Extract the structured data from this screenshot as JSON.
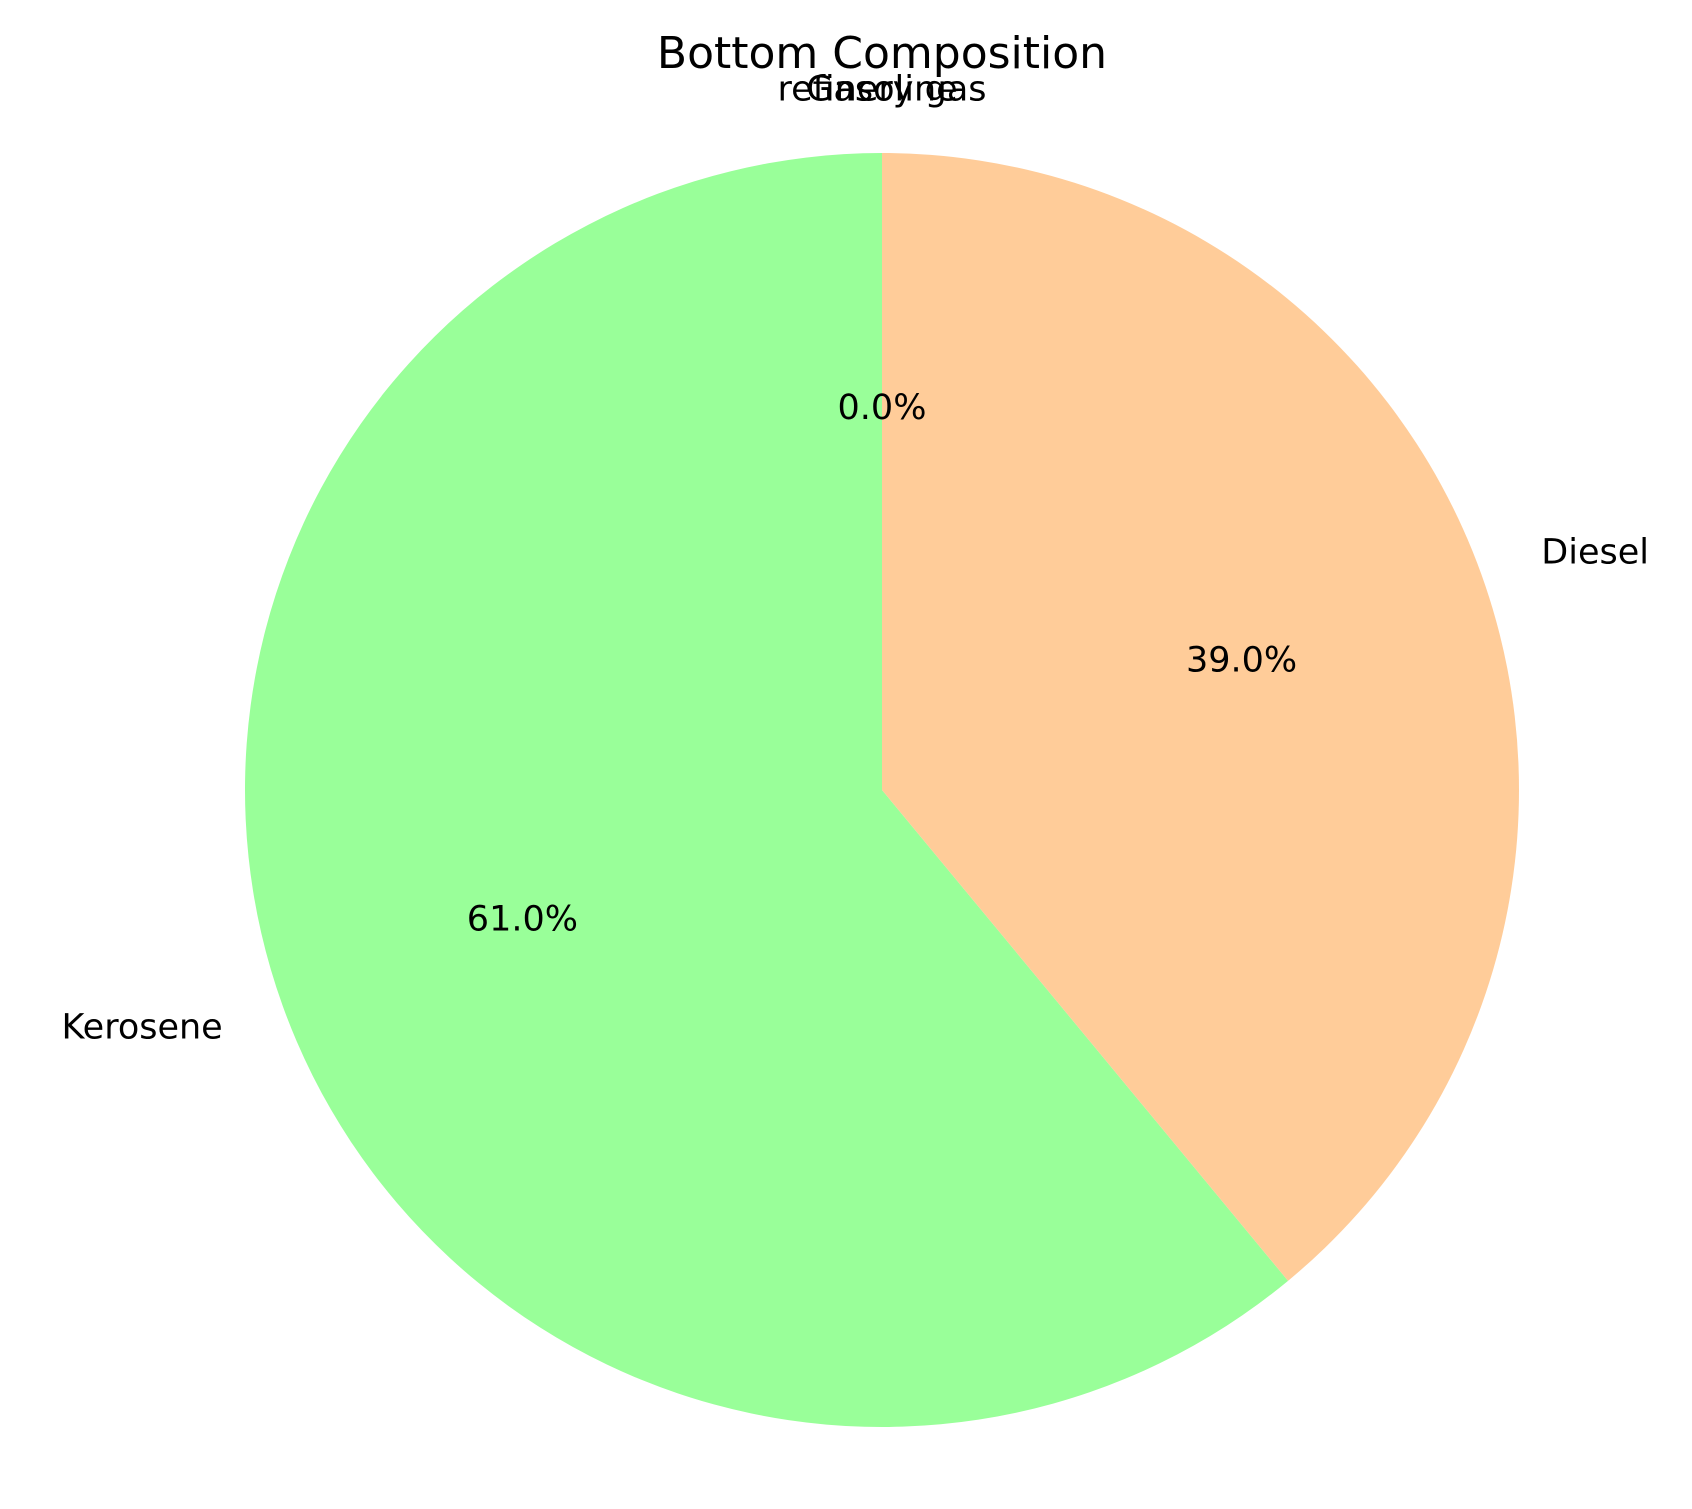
{
  "chart_data": {
    "type": "pie",
    "title": "Bottom Composition",
    "start_angle_deg": 90,
    "direction": "counterclockwise",
    "slices": [
      {
        "label": "refinery gas",
        "value": 0.0,
        "pct_label": "",
        "color": "#66b3ff"
      },
      {
        "label": "Gasoline",
        "value": 0.0,
        "pct_label": "0.0%",
        "color": "#ff9999"
      },
      {
        "label": "Kerosene",
        "value": 61.0,
        "pct_label": "61.0%",
        "color": "#99ff99"
      },
      {
        "label": "Diesel",
        "value": 39.0,
        "pct_label": "39.0%",
        "color": "#ffcc99"
      }
    ]
  }
}
